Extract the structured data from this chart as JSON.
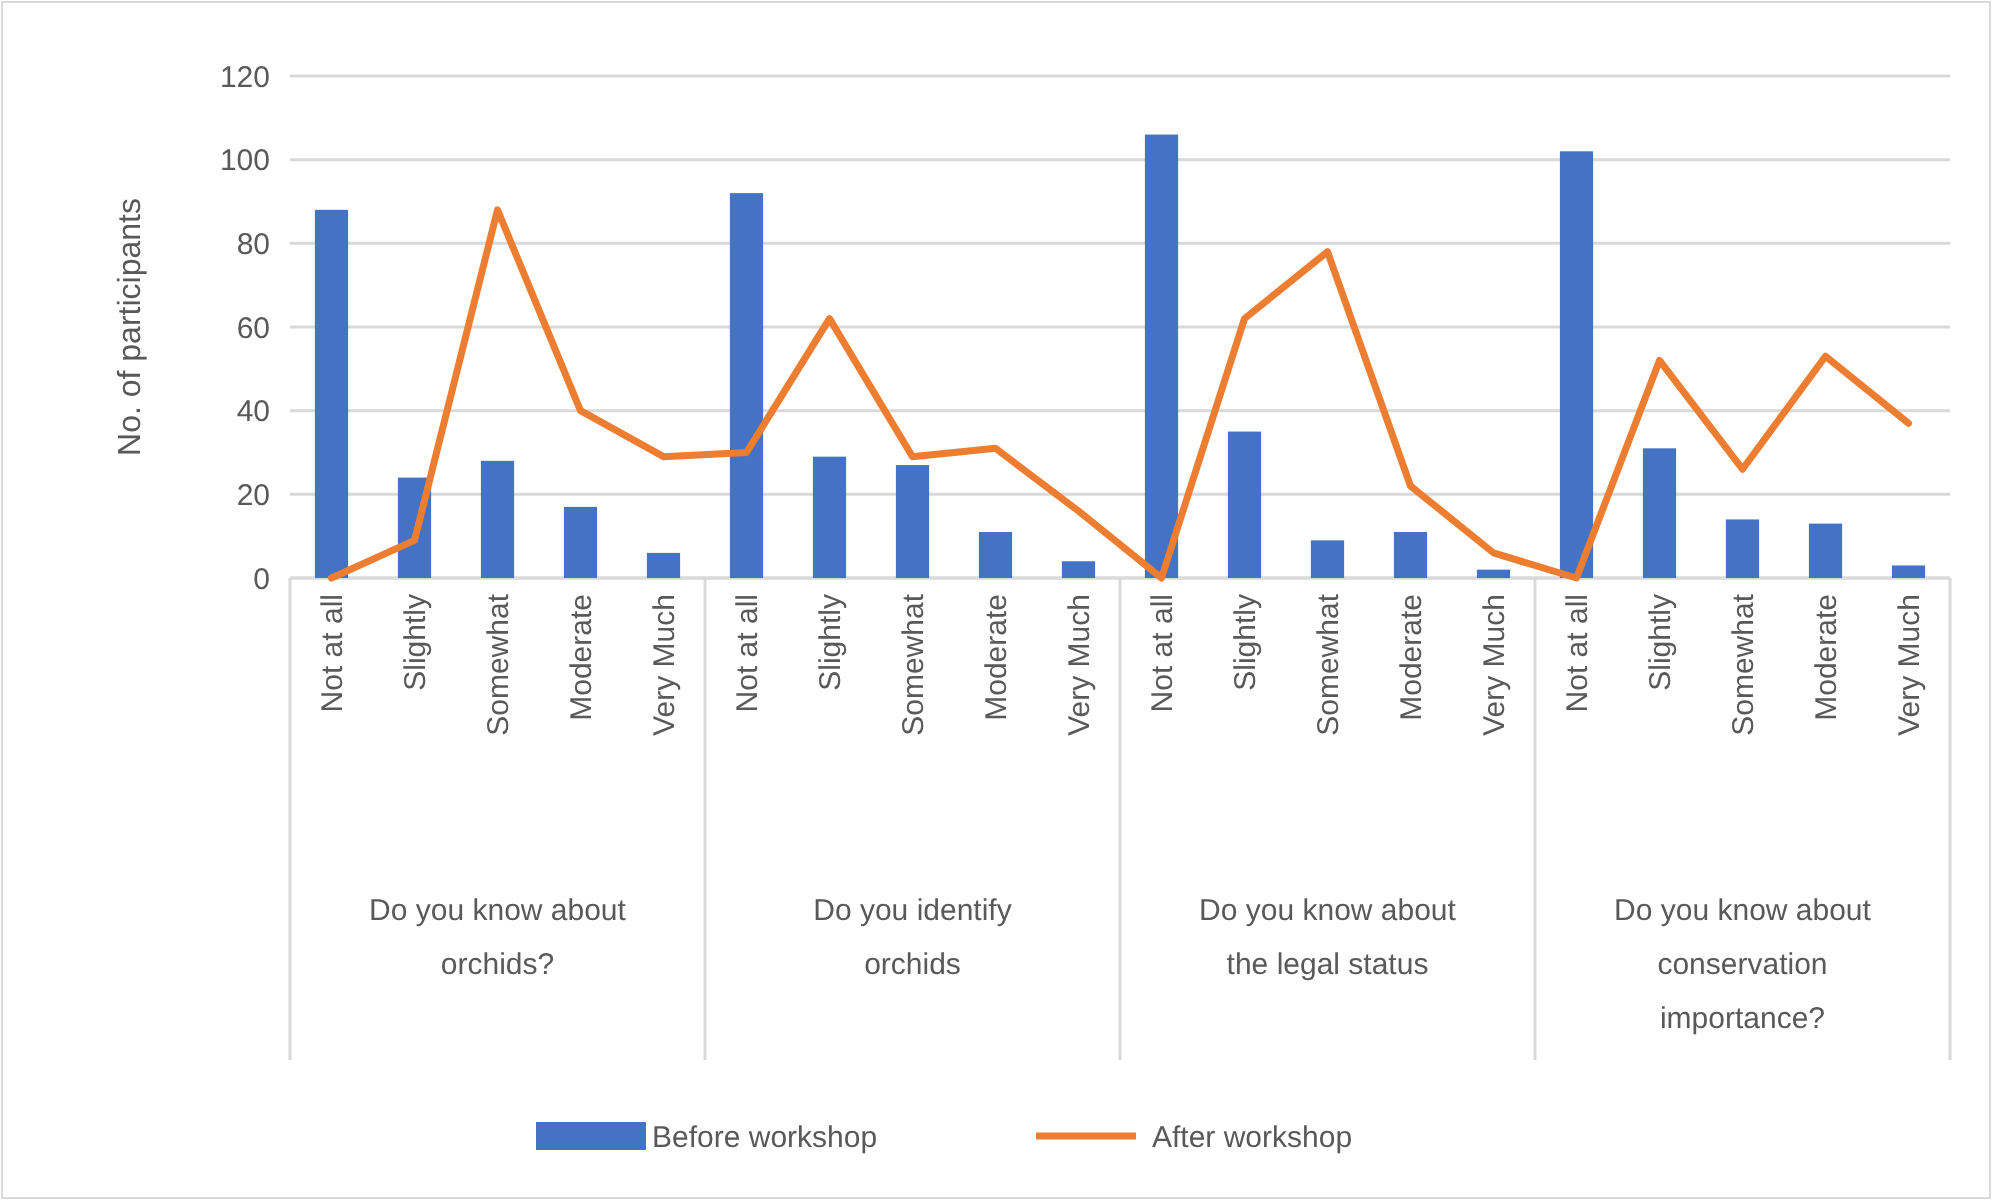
{
  "chart_data": {
    "type": "bar",
    "ylabel": "No. of participants",
    "categories": [
      "Not at all",
      "Slightly",
      "Somewhat",
      "Moderate",
      "Very Much",
      "Not at all",
      "Slightly",
      "Somewhat",
      "Moderate",
      "Very Much",
      "Not at all",
      "Slightly",
      "Somewhat",
      "Moderate",
      "Very Much",
      "Not at all",
      "Slightly",
      "Somewhat",
      "Moderate",
      "Very Much"
    ],
    "series": [
      {
        "name": "Before workshop",
        "color": "#4472c4",
        "values": [
          88,
          24,
          28,
          17,
          6,
          92,
          29,
          27,
          11,
          4,
          106,
          35,
          9,
          11,
          2,
          102,
          31,
          14,
          13,
          3
        ]
      },
      {
        "name": "After workshop",
        "type": "line",
        "color": "#ed7d31",
        "values": [
          0,
          9,
          88,
          40,
          29,
          30,
          62,
          29,
          31,
          16,
          0,
          62,
          78,
          22,
          6,
          0,
          52,
          26,
          53,
          37
        ]
      }
    ],
    "annotations": [
      "Do you know about orchids?",
      "Do you identify orchids",
      "Do you know about the legal status",
      "Do you know about conservation importance?"
    ],
    "ylim": [
      0,
      120
    ],
    "yticks": [
      0,
      20,
      40,
      60,
      80,
      100,
      120
    ],
    "grid": "y",
    "legend": "bottom",
    "marker": "none"
  }
}
